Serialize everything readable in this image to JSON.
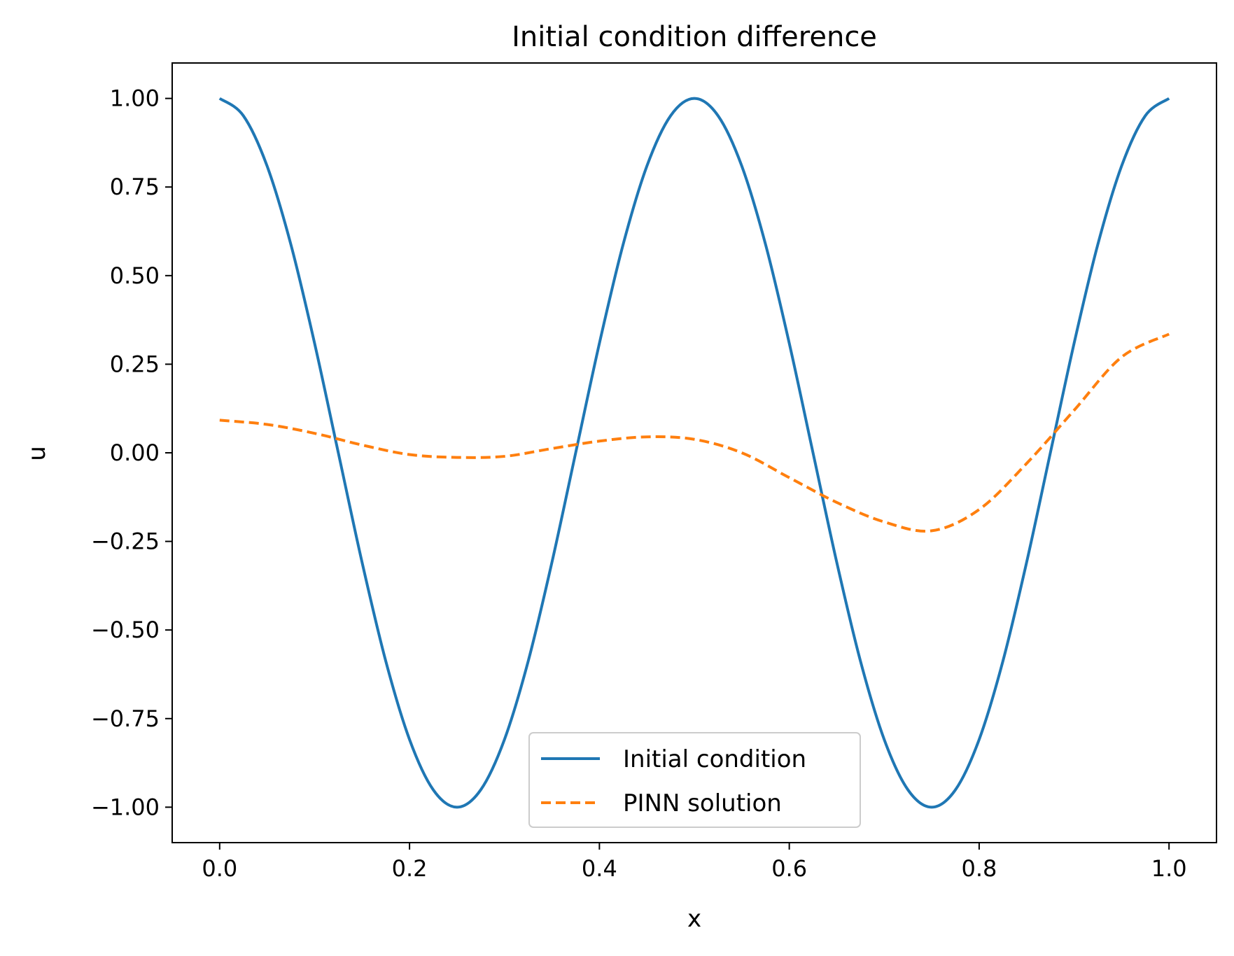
{
  "chart_data": {
    "type": "line",
    "title": "Initial condition difference",
    "xlabel": "x",
    "ylabel": "u",
    "xlim": [
      -0.05,
      1.05
    ],
    "ylim": [
      -1.1,
      1.1
    ],
    "x_ticks": [
      0.0,
      0.2,
      0.4,
      0.6,
      0.8,
      1.0
    ],
    "x_tick_labels": [
      "0.0",
      "0.2",
      "0.4",
      "0.6",
      "0.8",
      "1.0"
    ],
    "y_ticks": [
      1.0,
      0.75,
      0.5,
      0.25,
      0.0,
      -0.25,
      -0.5,
      -0.75,
      -1.0
    ],
    "y_tick_labels": [
      "1.00",
      "0.75",
      "0.50",
      "0.25",
      "0.00",
      "−0.25",
      "−0.50",
      "−0.75",
      "−1.00"
    ],
    "grid": false,
    "legend_position": "bottom-center",
    "series": [
      {
        "name": "Initial condition",
        "color": "#1f77b4",
        "dash": "solid",
        "x": [
          0.0,
          0.025,
          0.05,
          0.075,
          0.1,
          0.125,
          0.15,
          0.175,
          0.2,
          0.225,
          0.25,
          0.275,
          0.3,
          0.325,
          0.35,
          0.375,
          0.4,
          0.425,
          0.45,
          0.475,
          0.5,
          0.525,
          0.55,
          0.575,
          0.6,
          0.625,
          0.65,
          0.675,
          0.7,
          0.725,
          0.75,
          0.775,
          0.8,
          0.825,
          0.85,
          0.875,
          0.9,
          0.925,
          0.95,
          0.975,
          1.0
        ],
        "y": [
          1.0,
          0.951,
          0.809,
          0.588,
          0.309,
          0.0,
          -0.309,
          -0.588,
          -0.809,
          -0.951,
          -1.0,
          -0.951,
          -0.809,
          -0.588,
          -0.309,
          0.0,
          0.309,
          0.588,
          0.809,
          0.951,
          1.0,
          0.951,
          0.809,
          0.588,
          0.309,
          0.0,
          -0.309,
          -0.588,
          -0.809,
          -0.951,
          -1.0,
          -0.951,
          -0.809,
          -0.588,
          -0.309,
          0.0,
          0.309,
          0.588,
          0.809,
          0.951,
          1.0
        ]
      },
      {
        "name": "PINN solution",
        "color": "#ff7f0e",
        "dash": "dashed",
        "x": [
          0.0,
          0.05,
          0.1,
          0.15,
          0.2,
          0.25,
          0.3,
          0.35,
          0.4,
          0.45,
          0.5,
          0.55,
          0.6,
          0.65,
          0.7,
          0.75,
          0.8,
          0.85,
          0.9,
          0.95,
          1.0
        ],
        "y": [
          0.092,
          0.08,
          0.055,
          0.022,
          -0.005,
          -0.013,
          -0.01,
          0.012,
          0.033,
          0.045,
          0.038,
          0.0,
          -0.07,
          -0.14,
          -0.195,
          -0.22,
          -0.16,
          -0.03,
          0.12,
          0.27,
          0.335
        ]
      }
    ]
  }
}
